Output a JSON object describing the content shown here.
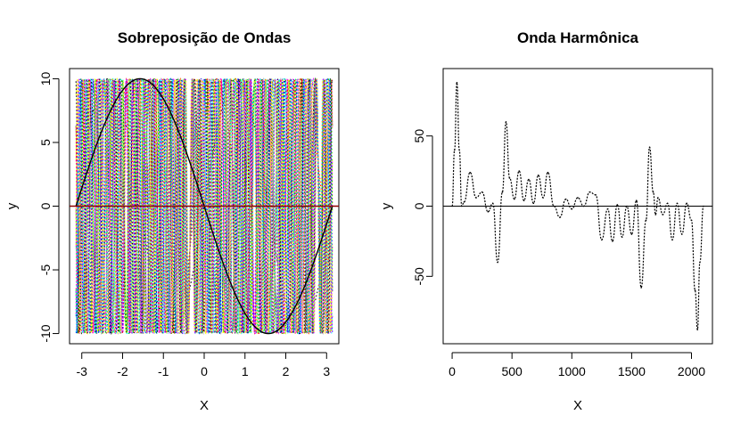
{
  "chart_data": [
    {
      "type": "line",
      "title": "Sobreposição de Ondas",
      "xlabel": "X",
      "ylabel": "y",
      "xlim": [
        -3.3,
        3.3
      ],
      "ylim": [
        -10.8,
        10.8
      ],
      "xticks": [
        -3,
        -2,
        -1,
        0,
        1,
        2,
        3
      ],
      "yticks": [
        -10,
        -5,
        0,
        5,
        10
      ],
      "amplitude": 10,
      "description_of_series": "many dotted sine waves of amplitude 10 with increasing frequency over x in [-pi, pi]; one solid black base sine wave; horizontal zero line",
      "base_wave": {
        "name": "",
        "function": "-10*sin(x)",
        "x_range": [
          -3.1416,
          3.1416
        ]
      },
      "series_colors": [
        "#000000",
        "#ff0000",
        "#00cd00",
        "#0000ff",
        "#00ffff",
        "#ff00ff",
        "#ffff00",
        "#bebebe"
      ],
      "wave_frequencies": [
        2,
        3,
        5,
        7,
        9,
        11,
        13,
        15,
        17,
        19,
        21,
        23,
        25,
        27,
        29,
        31,
        33,
        35,
        37,
        39,
        41,
        43,
        45
      ],
      "zero_line": 0,
      "grid": false
    },
    {
      "type": "line",
      "title": "Onda Harmônica",
      "xlabel": "X",
      "ylabel": "y",
      "xlim": [
        -75,
        2175
      ],
      "ylim": [
        -98,
        98
      ],
      "xticks": [
        0,
        500,
        1000,
        1500,
        2000
      ],
      "yticks": [
        -50,
        0,
        50
      ],
      "zero_line": 0,
      "grid": false,
      "x": [
        0,
        20,
        40,
        60,
        80,
        100,
        150,
        200,
        250,
        300,
        340,
        380,
        420,
        450,
        480,
        520,
        560,
        600,
        640,
        680,
        720,
        760,
        800,
        850,
        900,
        950,
        1000,
        1050,
        1100,
        1150,
        1200,
        1250,
        1300,
        1340,
        1380,
        1420,
        1460,
        1500,
        1540,
        1580,
        1620,
        1650,
        1680,
        1700,
        1720,
        1760,
        1800,
        1840,
        1880,
        1920,
        1960,
        2000,
        2030,
        2050,
        2070,
        2100
      ],
      "y": [
        0,
        40,
        88,
        40,
        0,
        3,
        24,
        6,
        10,
        -4,
        2,
        -40,
        10,
        60,
        20,
        5,
        25,
        4,
        19,
        2,
        22,
        6,
        24,
        0,
        -8,
        5,
        -2,
        6,
        0,
        10,
        8,
        -24,
        -2,
        -25,
        1,
        -22,
        0,
        -20,
        4,
        -58,
        -10,
        42,
        10,
        -6,
        6,
        -6,
        2,
        -24,
        2,
        -20,
        2,
        -10,
        -60,
        -88,
        -40,
        0
      ]
    }
  ]
}
